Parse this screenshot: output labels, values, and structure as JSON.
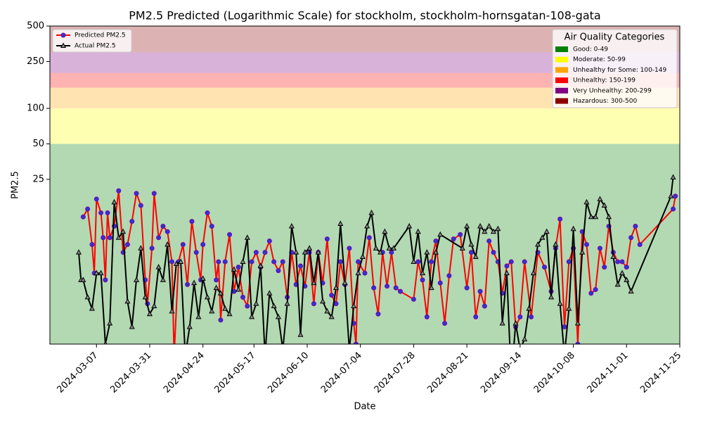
{
  "chart_data": {
    "type": "line",
    "title": "PM2.5 Predicted (Logarithmic Scale) for stockholm, stockholm-hornsgatan-108-gata",
    "xlabel": "Date",
    "ylabel": "PM2.5",
    "log_scale": true,
    "legend": "upper left",
    "xlim": [
      "2024-02-15",
      "2024-11-25"
    ],
    "xticks": [
      "2024-03-07",
      "2024-03-31",
      "2024-04-24",
      "2024-05-17",
      "2024-06-10",
      "2024-07-04",
      "2024-07-28",
      "2024-08-21",
      "2024-09-14",
      "2024-10-08",
      "2024-11-01",
      "2024-11-25"
    ],
    "ylim": [
      1,
      500
    ],
    "yticks": [
      25,
      50,
      100,
      250,
      500
    ],
    "categories_legend": {
      "title": "Air Quality Categories",
      "location": "upper right",
      "items": [
        {
          "label": "Good: 0-49",
          "color": "#008000",
          "lower": 0,
          "upper": 50
        },
        {
          "label": "Moderate: 50-99",
          "color": "#ffff00",
          "lower": 50,
          "upper": 100
        },
        {
          "label": "Unhealthy for Some: 100-149",
          "color": "#ffa500",
          "lower": 100,
          "upper": 150
        },
        {
          "label": "Unhealthy: 150-199",
          "color": "#ff0000",
          "lower": 150,
          "upper": 200
        },
        {
          "label": "Very Unhealthy: 200-299",
          "color": "#800080",
          "lower": 200,
          "upper": 300
        },
        {
          "label": "Hazardous: 300-500",
          "color": "#8b0000",
          "lower": 300,
          "upper": 500
        }
      ]
    },
    "series": [
      {
        "name": "Predicted PM2.5",
        "color": "#ff0000",
        "marker_color": "#3333cc",
        "x": [
          "2024-03-01",
          "2024-03-03",
          "2024-03-05",
          "2024-03-06",
          "2024-03-07",
          "2024-03-09",
          "2024-03-10",
          "2024-03-11",
          "2024-03-12",
          "2024-03-13",
          "2024-03-15",
          "2024-03-17",
          "2024-03-19",
          "2024-03-21",
          "2024-03-23",
          "2024-03-25",
          "2024-03-27",
          "2024-03-29",
          "2024-03-30",
          "2024-04-01",
          "2024-04-02",
          "2024-04-04",
          "2024-04-06",
          "2024-04-08",
          "2024-04-10",
          "2024-04-11",
          "2024-04-13",
          "2024-04-15",
          "2024-04-17",
          "2024-04-19",
          "2024-04-21",
          "2024-04-23",
          "2024-04-24",
          "2024-04-26",
          "2024-04-28",
          "2024-04-30",
          "2024-05-01",
          "2024-05-02",
          "2024-05-04",
          "2024-05-06",
          "2024-05-08",
          "2024-05-10",
          "2024-05-12",
          "2024-05-14",
          "2024-05-16",
          "2024-05-18",
          "2024-05-20",
          "2024-05-22",
          "2024-05-24",
          "2024-05-26",
          "2024-05-28",
          "2024-05-30",
          "2024-06-01",
          "2024-06-03",
          "2024-06-05",
          "2024-06-07",
          "2024-06-09",
          "2024-06-11",
          "2024-06-13",
          "2024-06-15",
          "2024-06-17",
          "2024-06-19",
          "2024-06-21",
          "2024-06-23",
          "2024-06-25",
          "2024-06-27",
          "2024-06-29",
          "2024-07-01",
          "2024-07-02",
          "2024-07-03",
          "2024-07-06",
          "2024-07-08",
          "2024-07-10",
          "2024-07-12",
          "2024-07-14",
          "2024-07-16",
          "2024-07-18",
          "2024-07-20",
          "2024-07-22",
          "2024-07-28",
          "2024-07-30",
          "2024-08-01",
          "2024-08-03",
          "2024-08-05",
          "2024-08-07",
          "2024-08-09",
          "2024-08-11",
          "2024-08-13",
          "2024-08-15",
          "2024-08-18",
          "2024-08-21",
          "2024-08-23",
          "2024-08-25",
          "2024-08-27",
          "2024-08-29",
          "2024-08-31",
          "2024-09-02",
          "2024-09-04",
          "2024-09-06",
          "2024-09-08",
          "2024-09-10",
          "2024-09-12",
          "2024-09-14",
          "2024-09-16",
          "2024-09-19",
          "2024-09-22",
          "2024-09-25",
          "2024-09-28",
          "2024-09-30",
          "2024-10-02",
          "2024-10-04",
          "2024-10-06",
          "2024-10-08",
          "2024-10-10",
          "2024-10-12",
          "2024-10-14",
          "2024-10-16",
          "2024-10-18",
          "2024-10-20",
          "2024-10-22",
          "2024-10-24",
          "2024-10-26",
          "2024-10-28",
          "2024-10-30",
          "2024-11-01",
          "2024-11-03",
          "2024-11-05",
          "2024-11-07",
          "2024-11-22",
          "2024-11-23"
        ],
        "values": [
          12,
          14,
          7,
          4,
          17,
          13,
          8,
          3.5,
          13,
          8,
          10,
          20,
          6,
          7,
          11,
          19,
          15,
          3.5,
          2.2,
          6.5,
          19,
          8,
          10,
          9,
          5,
          0.8,
          5,
          7,
          3.2,
          11,
          6,
          3.5,
          7,
          13,
          10,
          3.5,
          5,
          1.6,
          5,
          8.5,
          2.8,
          4.5,
          2.5,
          2.1,
          5,
          6,
          4.5,
          6,
          7.5,
          5,
          4.2,
          5,
          2.5,
          6,
          3.2,
          4.6,
          3.1,
          6,
          2.2,
          6,
          3.3,
          7.8,
          2.6,
          2.2,
          5,
          3.2,
          6.5,
          1.5,
          1,
          5,
          4,
          8,
          3,
          1.8,
          6,
          3.1,
          6,
          3,
          2.8,
          2.4,
          5,
          3.5,
          1.7,
          5,
          7.5,
          3.3,
          1.5,
          3.8,
          7.8,
          8.5,
          3,
          6,
          1.7,
          2.8,
          2.1,
          7.5,
          6,
          5,
          2.7,
          4.6,
          5,
          1.4,
          1.7,
          5,
          1.7,
          6,
          4.5,
          2.8,
          6.5,
          11.5,
          1.4,
          5,
          6.5,
          1,
          9,
          7,
          2.7,
          2.9,
          6.5,
          4.5,
          10,
          6,
          5,
          5,
          4.5,
          8,
          10,
          7,
          14,
          18
        ]
      },
      {
        "name": "Actual PM2.5",
        "color": "#000000",
        "marker_color": "#888888",
        "x": [
          "2024-02-28",
          "2024-02-29",
          "2024-03-01",
          "2024-03-03",
          "2024-03-05",
          "2024-03-07",
          "2024-03-09",
          "2024-03-11",
          "2024-03-13",
          "2024-03-15",
          "2024-03-17",
          "2024-03-19",
          "2024-03-21",
          "2024-03-23",
          "2024-03-25",
          "2024-03-27",
          "2024-03-29",
          "2024-03-31",
          "2024-04-02",
          "2024-04-04",
          "2024-04-06",
          "2024-04-08",
          "2024-04-10",
          "2024-04-12",
          "2024-04-14",
          "2024-04-16",
          "2024-04-18",
          "2024-04-20",
          "2024-04-22",
          "2024-04-24",
          "2024-04-26",
          "2024-04-28",
          "2024-04-30",
          "2024-05-02",
          "2024-05-04",
          "2024-05-06",
          "2024-05-08",
          "2024-05-10",
          "2024-05-12",
          "2024-05-14",
          "2024-05-16",
          "2024-05-18",
          "2024-05-20",
          "2024-05-22",
          "2024-05-24",
          "2024-05-26",
          "2024-05-28",
          "2024-05-30",
          "2024-06-01",
          "2024-06-03",
          "2024-06-05",
          "2024-06-07",
          "2024-06-09",
          "2024-06-11",
          "2024-06-13",
          "2024-06-15",
          "2024-06-17",
          "2024-06-19",
          "2024-06-21",
          "2024-06-23",
          "2024-06-25",
          "2024-06-27",
          "2024-06-29",
          "2024-07-01",
          "2024-07-03",
          "2024-07-05",
          "2024-07-07",
          "2024-07-09",
          "2024-07-11",
          "2024-07-13",
          "2024-07-15",
          "2024-07-17",
          "2024-07-19",
          "2024-07-26",
          "2024-07-28",
          "2024-07-30",
          "2024-08-01",
          "2024-08-03",
          "2024-08-05",
          "2024-08-07",
          "2024-08-09",
          "2024-08-19",
          "2024-08-21",
          "2024-08-23",
          "2024-08-25",
          "2024-08-27",
          "2024-08-29",
          "2024-08-31",
          "2024-09-02",
          "2024-09-04",
          "2024-09-06",
          "2024-09-08",
          "2024-09-10",
          "2024-09-12",
          "2024-09-14",
          "2024-09-16",
          "2024-09-18",
          "2024-09-20",
          "2024-09-22",
          "2024-09-24",
          "2024-09-26",
          "2024-09-28",
          "2024-09-30",
          "2024-10-02",
          "2024-10-04",
          "2024-10-06",
          "2024-10-08",
          "2024-10-10",
          "2024-10-12",
          "2024-10-14",
          "2024-10-16",
          "2024-10-18",
          "2024-10-20",
          "2024-10-22",
          "2024-10-24",
          "2024-10-26",
          "2024-10-28",
          "2024-10-30",
          "2024-11-01",
          "2024-11-03",
          "2024-11-21",
          "2024-11-22"
        ],
        "values": [
          6,
          3.5,
          3.5,
          2.5,
          2,
          4,
          4,
          1,
          1.5,
          16,
          8,
          9,
          2.3,
          1.4,
          3.5,
          6.5,
          2.5,
          1.8,
          2.1,
          4.5,
          3.5,
          7,
          1.9,
          4.8,
          5,
          0.8,
          1.4,
          3.3,
          1.7,
          3.6,
          2.5,
          1.9,
          3,
          2.7,
          2,
          1.8,
          4.3,
          2.9,
          5,
          8,
          1.7,
          2.2,
          4.6,
          0.8,
          2.7,
          2.1,
          1.7,
          0.9,
          2.2,
          10,
          6,
          1.2,
          6,
          6.5,
          3.3,
          6,
          2.3,
          1.9,
          1.7,
          3,
          10.5,
          3.3,
          0.9,
          2.1,
          4,
          5.5,
          10,
          13,
          6.5,
          6,
          9,
          6.5,
          6.5,
          10,
          5,
          9,
          4,
          6,
          3,
          6,
          8.5,
          6.5,
          10,
          7,
          5.5,
          10,
          9,
          10,
          9,
          9.5,
          1.5,
          4,
          0.5,
          1.5,
          0.9,
          1.1,
          2,
          4,
          7,
          8,
          9,
          2.5,
          7,
          2.2,
          0.8,
          2,
          9.5,
          1.5,
          6,
          16,
          12,
          12,
          17,
          15,
          12,
          5.5,
          3.2,
          4,
          3.5,
          2.8,
          18,
          26
        ]
      }
    ]
  }
}
